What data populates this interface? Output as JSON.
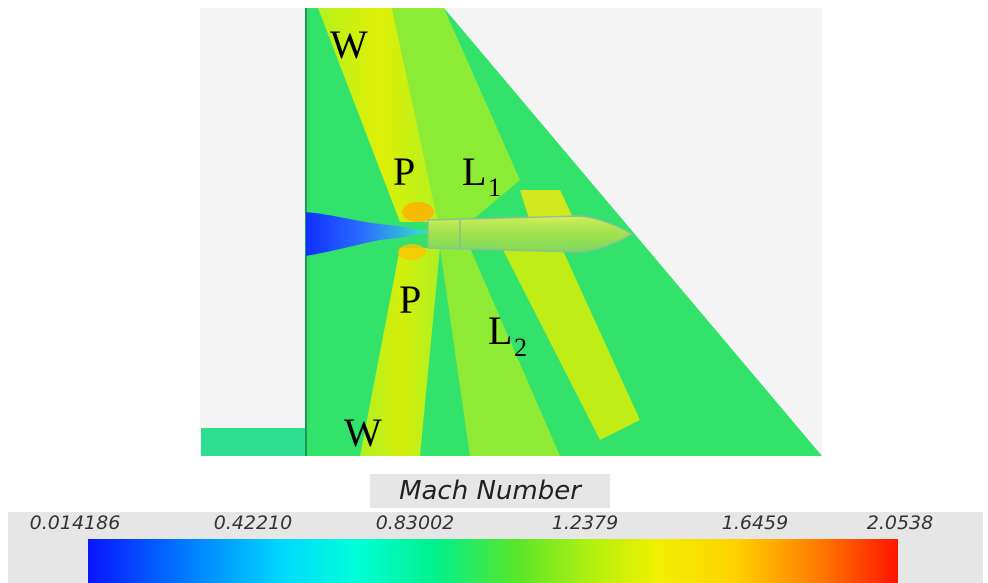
{
  "regions": {
    "w_top": "W",
    "p_upper": "P",
    "l1_main": "L",
    "l1_sub": "1",
    "p_lower": "P",
    "l2_main": "L",
    "l2_sub": "2",
    "w_bottom": "W"
  },
  "colorbar": {
    "title": "Mach Number",
    "ticks": [
      "0.014186",
      "0.42210",
      "0.83002",
      "1.2379",
      "1.6459",
      "2.0538"
    ],
    "range": [
      0.014186,
      2.0538
    ],
    "colors": {
      "low": "#0a14ff",
      "mid": "#5ae62a",
      "high": "#ff1400"
    }
  }
}
